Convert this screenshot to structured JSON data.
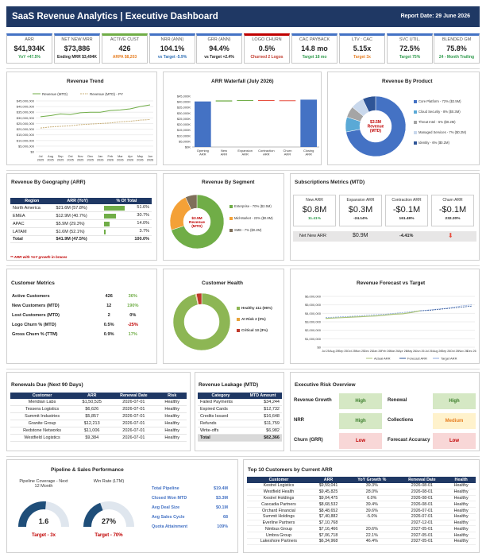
{
  "header": {
    "title": "SaaS Revenue Analytics  |  Executive Dashboard",
    "date_label": "Report Date:  29 June 2026"
  },
  "kpis": [
    {
      "label": "ARR",
      "value": "$41,934K",
      "sub": "YoY +47.5%",
      "color": "#2e9a4b"
    },
    {
      "label": "NET NEW MRR",
      "value": "$73,886",
      "sub": "Ending MRR $3,494K",
      "color": "#222222"
    },
    {
      "label": "ACTIVE CUST",
      "value": "426",
      "sub": "ARPA $8,203",
      "color": "#e67e22"
    },
    {
      "label": "NRR (ANN)",
      "value": "104.1%",
      "sub": "vs Target -5.9%",
      "color": "#2e6fb5"
    },
    {
      "label": "GRR (ANN)",
      "value": "94.4%",
      "sub": "vs Target +2.4%",
      "color": "#222222"
    },
    {
      "label": "LOGO CHURN",
      "value": "0.5%",
      "sub": "Churned 2 Logos",
      "color": "#c0392b"
    },
    {
      "label": "CAC PAYBACK",
      "value": "14.8 mo",
      "sub": "Target 18 mo",
      "color": "#2e9a4b"
    },
    {
      "label": "LTV : CAC",
      "value": "5.15x",
      "sub": "Target 3x",
      "color": "#e67e22"
    },
    {
      "label": "SVC UTIL.",
      "value": "72.5%",
      "sub": "Target 75%",
      "color": "#2e9a4b"
    },
    {
      "label": "BLENDED GM",
      "value": "75.8%",
      "sub": "24 - Month Trailing",
      "color": "#2e9a4b"
    }
  ],
  "kpi_colors": [
    "#4472c4",
    "#4472c4",
    "#70ad47",
    "#4472c4",
    "#4472c4",
    "#c00000",
    "#4472c4",
    "#4472c4",
    "#4472c4",
    "#4472c4"
  ],
  "revenue_trend": {
    "title": "Revenue Trend",
    "legend": [
      "Revenue (MTD)",
      "Revenue (MTD) - PY"
    ],
    "y_ticks": [
      "$45,000,000",
      "$40,000,000",
      "$35,000,000",
      "$30,000,000",
      "$25,000,000",
      "$20,000,000",
      "$15,000,000",
      "$10,000,000",
      "$5,000,000",
      "$0"
    ],
    "x_ticks": [
      "Jul 2025",
      "Aug 2025",
      "Sep 2025",
      "Oct 2025",
      "Nov 2025",
      "Dec 2025",
      "Jan 2026",
      "Feb 2026",
      "Mar 2026",
      "Apr 2026",
      "May 2026",
      "Jun 2026"
    ]
  },
  "waterfall": {
    "title": "ARR Waterfall (July 2026)",
    "y_ticks": [
      "$45,000K",
      "$40,000K",
      "$35,000K",
      "$30,000K",
      "$25,000K",
      "$20,000K",
      "$15,000K",
      "$10,000K",
      "$5,000K",
      "$0K"
    ],
    "categories": [
      "Opening ARR",
      "New ARR",
      "Expansion ARR",
      "Contraction ARR",
      "Churn ARR",
      "Closing ARR"
    ]
  },
  "by_product": {
    "title": "Revenue By Product",
    "center": "$3.5M Revenue (MTD)",
    "legend": [
      "Core Platform - 72% ($2.5M)",
      "Cloud Security - 8% ($0.3M)",
      "Threat Intel - 6% ($0.2M)",
      "Managed Services - 7% ($0.2M)",
      "Identity - 6% ($0.2M)"
    ],
    "colors": [
      "#4472c4",
      "#5aa9d6",
      "#a5a5a5",
      "#c9d8ec",
      "#2f5597"
    ]
  },
  "geo": {
    "title": "Revenue By Geography (ARR)",
    "headers": [
      "Region",
      "ARR (YoY)",
      "% Of Total"
    ],
    "rows": [
      {
        "region": "North America",
        "arr": "$21.6M (57.8%)",
        "pct": "51.6%"
      },
      {
        "region": "EMEA",
        "arr": "$12.9M (40.7%)",
        "pct": "30.7%"
      },
      {
        "region": "APAC",
        "arr": "$5.9M (29.3%)",
        "pct": "14.0%"
      },
      {
        "region": "LATAM",
        "arr": "$1.6M (52.1%)",
        "pct": "3.7%"
      }
    ],
    "total": {
      "region": "Total",
      "arr": "$41.9M (47.5%)",
      "pct": "100.0%"
    },
    "note": "** ARR with YoY growth in braces"
  },
  "segment": {
    "title": "Revenue By Segment",
    "center": "$3.5M Revenue (MTD)",
    "legend": [
      "Enterprise - 70% ($2.5M)",
      "Mid-Market - 23% ($0.8M)",
      "SMB - 7% ($0.2M)"
    ],
    "colors": [
      "#70ad47",
      "#f4a137",
      "#7f6f5a"
    ]
  },
  "subs": {
    "title": "Subscriptions Metrics (MTD)",
    "cards": [
      {
        "label": "New ARR",
        "value": "$0.8M",
        "sub": "11.41%",
        "sub_color": "#2e9a4b"
      },
      {
        "label": "Expansion ARR",
        "value": "$0.3M",
        "sub": "-24.14%",
        "sub_color": "#222222"
      },
      {
        "label": "Contraction ARR",
        "value": "-$0.1M",
        "sub": "161.49%",
        "sub_color": "#222222"
      },
      {
        "label": "Churn ARR",
        "value": "-$0.1M",
        "sub": "232.20%",
        "sub_color": "#222222"
      }
    ],
    "net_label": "Net New ARR",
    "net_value": "$0.9M",
    "net_pct": "-4.41%"
  },
  "customer_metrics": {
    "title": "Customer Metrics",
    "rows": [
      {
        "label": "Active Customers",
        "value": "426",
        "change": "36%",
        "color": "#70ad47"
      },
      {
        "label": "New Customers (MTD)",
        "value": "12",
        "change": "190%",
        "color": "#70ad47"
      },
      {
        "label": "Lost Customers (MTD)",
        "value": "2",
        "change": "0%",
        "color": "#222222"
      },
      {
        "label": "Logo Churn % (MTD)",
        "value": "0.5%",
        "change": "-25%",
        "color": "#c00000"
      },
      {
        "label": "Gross Churn % (TTM)",
        "value": "0.9%",
        "change": "17%",
        "color": "#70ad47"
      }
    ]
  },
  "health": {
    "title": "Customer Health",
    "legend": [
      "Healthy 411 (96%)",
      "At Risk 2 (0%)",
      "Critical 13 (3%)"
    ],
    "colors": [
      "#8db654",
      "#e8a33a",
      "#c0392b"
    ]
  },
  "forecast": {
    "title": "Revenue Forecast vs Target",
    "y_ticks": [
      "$6,000,000",
      "$5,000,000",
      "$4,000,000",
      "$3,000,000",
      "$2,000,000",
      "$1,000,000",
      "$0"
    ],
    "x_ticks": [
      "Jul 25",
      "Aug 25",
      "Sep 25",
      "Oct 25",
      "Nov 25",
      "Dec 25",
      "Jan 26",
      "Feb 26",
      "Mar 26",
      "Apr 26",
      "May 26",
      "Jun 26",
      "Jul 26",
      "Aug 26",
      "Sep 26",
      "Oct 26",
      "Nov 26",
      "Dec 26"
    ],
    "legend": [
      "Actual ARR",
      "Forecast ARR",
      "Target ARR"
    ]
  },
  "renewals": {
    "title": "Renewals Due (Next 90 Days)",
    "headers": [
      "Customer",
      "ARR",
      "Renewal Date",
      "Risk"
    ],
    "rows": [
      [
        "Meridian Labs",
        "$1,50,525",
        "2026-07-01",
        "Healthy"
      ],
      [
        "Tessera Logistics",
        "$6,626",
        "2026-07-01",
        "Healthy"
      ],
      [
        "Summit Industries",
        "$5,857",
        "2026-07-01",
        "Healthy"
      ],
      [
        "Granite Group",
        "$12,213",
        "2026-07-01",
        "Healthy"
      ],
      [
        "Redstone Networks",
        "$11,006",
        "2026-07-01",
        "Healthy"
      ],
      [
        "Westfield Logistics",
        "$9,384",
        "2026-07-01",
        "Healthy"
      ]
    ]
  },
  "leakage": {
    "title": "Revenue Leakage (MTD)",
    "headers": [
      "Category",
      "MTD Amount"
    ],
    "rows": [
      [
        "Failed Payments",
        "$34,244"
      ],
      [
        "Expired Cards",
        "$12,732"
      ],
      [
        "Credits Issued",
        "$16,648"
      ],
      [
        "Refunds",
        "$11,759"
      ],
      [
        "Write-offs",
        "$6,982"
      ]
    ],
    "total": [
      "Total",
      "$82,366"
    ]
  },
  "risk": {
    "title": "Executive Risk Overview",
    "items": [
      {
        "label": "Revenue Growth",
        "status": "High",
        "bg": "#d5e8c4",
        "fg": "#3a7d2a"
      },
      {
        "label": "Renewal",
        "status": "High",
        "bg": "#d5e8c4",
        "fg": "#3a7d2a"
      },
      {
        "label": "NRR",
        "status": "High",
        "bg": "#d5e8c4",
        "fg": "#3a7d2a"
      },
      {
        "label": "Collections",
        "status": "Medium",
        "bg": "#fff2cc",
        "fg": "#e67e22"
      },
      {
        "label": "Churn (GRR)",
        "status": "Low",
        "bg": "#f8d7d7",
        "fg": "#c00000"
      },
      {
        "label": "Forecast Accuracy",
        "status": "Low",
        "bg": "#f8d7d7",
        "fg": "#c00000"
      }
    ]
  },
  "pipeline": {
    "title": "Pipeline & Sales Performance",
    "gauge1": {
      "label": "Pipeline Coverage - Next 12 Month",
      "value": "1.6",
      "target": "Target - 3x",
      "fill": 0.53
    },
    "gauge2": {
      "label": "Win Rate (LTM)",
      "value": "27%",
      "target": "Target - 70%",
      "fill": 0.39
    },
    "stats": [
      [
        "Total Pipeline",
        "$19.4M"
      ],
      [
        "Closed Won MTD",
        "$3.3M"
      ],
      [
        "Avg Deal Size",
        "$0.1M"
      ],
      [
        "Avg Sales Cycle",
        "68"
      ],
      [
        "Quota Attainment",
        "109%"
      ]
    ]
  },
  "top10": {
    "title": "Top 10 Customers by Current ARR",
    "headers": [
      "Customer",
      "ARR",
      "YoY Growth %",
      "Renewal Date",
      "Health"
    ],
    "rows": [
      [
        "Kestrel Logistics",
        "$9,59,041",
        "39.3%",
        "2026-08-01",
        "Healthy"
      ],
      [
        "Westfield Health",
        "$9,45,825",
        "28.0%",
        "2026-08-01",
        "Healthy"
      ],
      [
        "Kestrel Holdings",
        "$9,04,475",
        "6.0%",
        "2026-08-01",
        "Healthy"
      ],
      [
        "Cascadia Partners",
        "$8,68,532",
        "39.4%",
        "2026-08-01",
        "Healthy"
      ],
      [
        "Orchard Financial",
        "$8,48,652",
        "39.6%",
        "2026-07-01",
        "Healthy"
      ],
      [
        "Summit Holdings",
        "$7,40,882",
        "-5.0%",
        "2026-07-01",
        "Healthy"
      ],
      [
        "Everline Partners",
        "$7,10,768",
        "",
        "2027-12-01",
        "Healthy"
      ],
      [
        "Nimbus Group",
        "$7,16,466",
        "20.6%",
        "2027-05-01",
        "Healthy"
      ],
      [
        "Umbra Group",
        "$7,06,718",
        "22.1%",
        "2027-05-01",
        "Healthy"
      ],
      [
        "Lakeshore Partners",
        "$6,34,968",
        "46.4%",
        "2027-05-01",
        "Healthy"
      ]
    ]
  }
}
